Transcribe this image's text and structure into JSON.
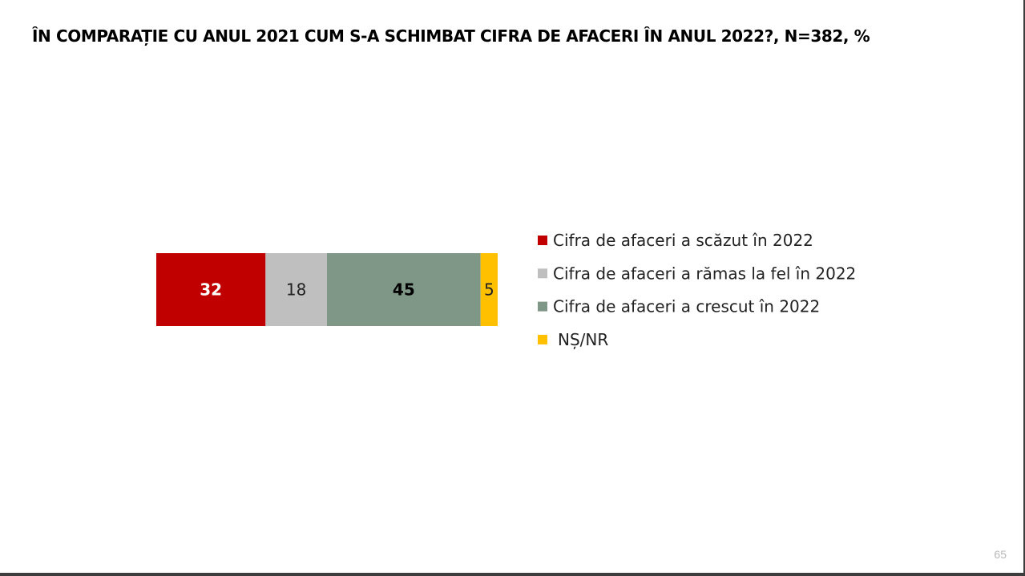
{
  "slide": {
    "title": "ÎN COMPARAȚIE CU ANUL 2021 CUM S-A SCHIMBAT CIFRA DE AFACERI ÎN ANUL 2022?, N=382, %",
    "page_number": "65"
  },
  "chart_data": {
    "type": "bar",
    "orientation": "horizontal",
    "stacked": true,
    "title": "ÎN COMPARAȚIE CU ANUL 2021 CUM S-A SCHIMBAT CIFRA DE AFACERI ÎN ANUL 2022?, N=382, %",
    "categories": [
      ""
    ],
    "series": [
      {
        "name": "Cifra de afaceri a scăzut în 2022",
        "values": [
          32
        ],
        "label": "32",
        "color": "#c00000",
        "label_color": "#ffffff",
        "label_bold": true
      },
      {
        "name": "Cifra de afaceri a rămas la fel în 2022",
        "values": [
          18
        ],
        "label": "18",
        "color": "#bfbfbf",
        "label_color": "#222222",
        "label_bold": false
      },
      {
        "name": "Cifra de afaceri a crescut în 2022",
        "values": [
          45
        ],
        "label": "45",
        "color": "#7f9787",
        "label_color": "#000000",
        "label_bold": true
      },
      {
        "name": "NȘ/NR",
        "values": [
          5
        ],
        "label": "5",
        "color": "#ffc000",
        "label_color": "#222222",
        "label_bold": false
      }
    ],
    "xlim": [
      0,
      100
    ],
    "grid": false,
    "legend_position": "right"
  }
}
